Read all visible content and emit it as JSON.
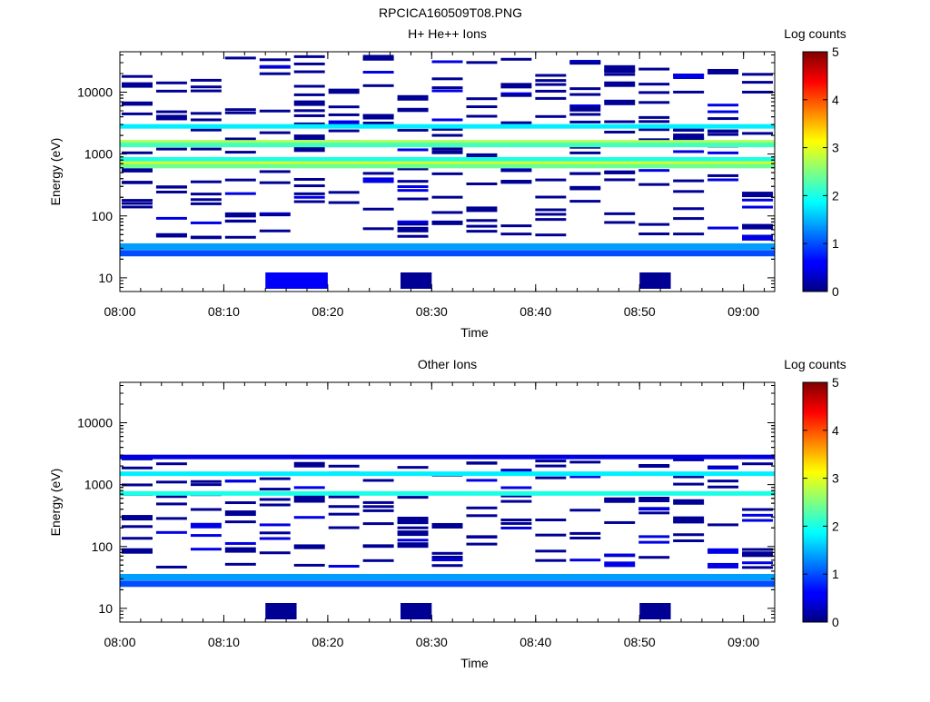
{
  "figure": {
    "title": "RPCICA160509T08.PNG"
  },
  "chart_data": [
    {
      "type": "heatmap",
      "title": "H+ He++ Ions",
      "xlabel": "Time",
      "ylabel": "Energy (eV)",
      "colorbar": {
        "label": "Log counts",
        "ticks": [
          "0",
          "1",
          "2",
          "3",
          "4",
          "5"
        ],
        "range": [
          0,
          5
        ],
        "colormap": "jet"
      },
      "x_ticks": [
        "08:00",
        "08:10",
        "08:20",
        "08:30",
        "08:40",
        "08:50",
        "09:00"
      ],
      "x_range": [
        "08:00",
        "09:03"
      ],
      "y_scale": "log",
      "y_ticks": [
        "10",
        "100",
        "1000",
        "10000"
      ],
      "y_range": [
        6,
        45000
      ],
      "grid": false,
      "series": [
        {
          "x": [
            "08:00",
            "09:03"
          ],
          "e_center": 2800,
          "log_counts": 1.8
        },
        {
          "x": [
            "08:00",
            "09:03"
          ],
          "e_center": 1550,
          "log_counts": 2.7
        },
        {
          "x": [
            "08:00",
            "09:03"
          ],
          "e_center": 1400,
          "log_counts": 2.2
        },
        {
          "x": [
            "08:00",
            "09:03"
          ],
          "e_center": 820,
          "log_counts": 2.0
        },
        {
          "x": [
            "08:00",
            "09:03"
          ],
          "e_center": 700,
          "log_counts": 3.0
        },
        {
          "x": [
            "08:00",
            "09:03"
          ],
          "e_center": 640,
          "log_counts": 2.4
        },
        {
          "x": [
            "08:00",
            "09:03"
          ],
          "e_center": 32,
          "log_counts": 1.4
        },
        {
          "x": [
            "08:00",
            "09:03"
          ],
          "e_center": 25,
          "log_counts": 1.0
        },
        {
          "x": [
            "08:14",
            "08:20"
          ],
          "e_center": 9,
          "log_counts": 0.6
        },
        {
          "x": [
            "08:27",
            "08:30"
          ],
          "e_center": 9,
          "log_counts": 0.1
        },
        {
          "x": [
            "08:50",
            "08:53"
          ],
          "e_center": 9,
          "log_counts": 0.1
        }
      ]
    },
    {
      "type": "heatmap",
      "title": "Other Ions",
      "xlabel": "Time",
      "ylabel": "Energy (eV)",
      "colorbar": {
        "label": "Log counts",
        "ticks": [
          "0",
          "1",
          "2",
          "3",
          "4",
          "5"
        ],
        "range": [
          0,
          5
        ],
        "colormap": "jet"
      },
      "x_ticks": [
        "08:00",
        "08:10",
        "08:20",
        "08:30",
        "08:40",
        "08:50",
        "09:00"
      ],
      "x_range": [
        "08:00",
        "09:03"
      ],
      "y_scale": "log",
      "y_ticks": [
        "10",
        "100",
        "1000",
        "10000"
      ],
      "y_range": [
        6,
        45000
      ],
      "grid": false,
      "series": [
        {
          "x": [
            "08:00",
            "09:03"
          ],
          "e_center": 2800,
          "log_counts": 0.5
        },
        {
          "x": [
            "08:00",
            "09:03"
          ],
          "e_center": 1500,
          "log_counts": 1.8
        },
        {
          "x": [
            "08:00",
            "09:03"
          ],
          "e_center": 720,
          "log_counts": 2.0
        },
        {
          "x": [
            "08:00",
            "09:03"
          ],
          "e_center": 32,
          "log_counts": 1.4
        },
        {
          "x": [
            "08:00",
            "09:03"
          ],
          "e_center": 25,
          "log_counts": 1.0
        },
        {
          "x": [
            "08:14",
            "08:17"
          ],
          "e_center": 9,
          "log_counts": 0.1
        },
        {
          "x": [
            "08:27",
            "08:30"
          ],
          "e_center": 9,
          "log_counts": 0.1
        },
        {
          "x": [
            "08:50",
            "08:53"
          ],
          "e_center": 9,
          "log_counts": 0.1
        }
      ]
    }
  ]
}
